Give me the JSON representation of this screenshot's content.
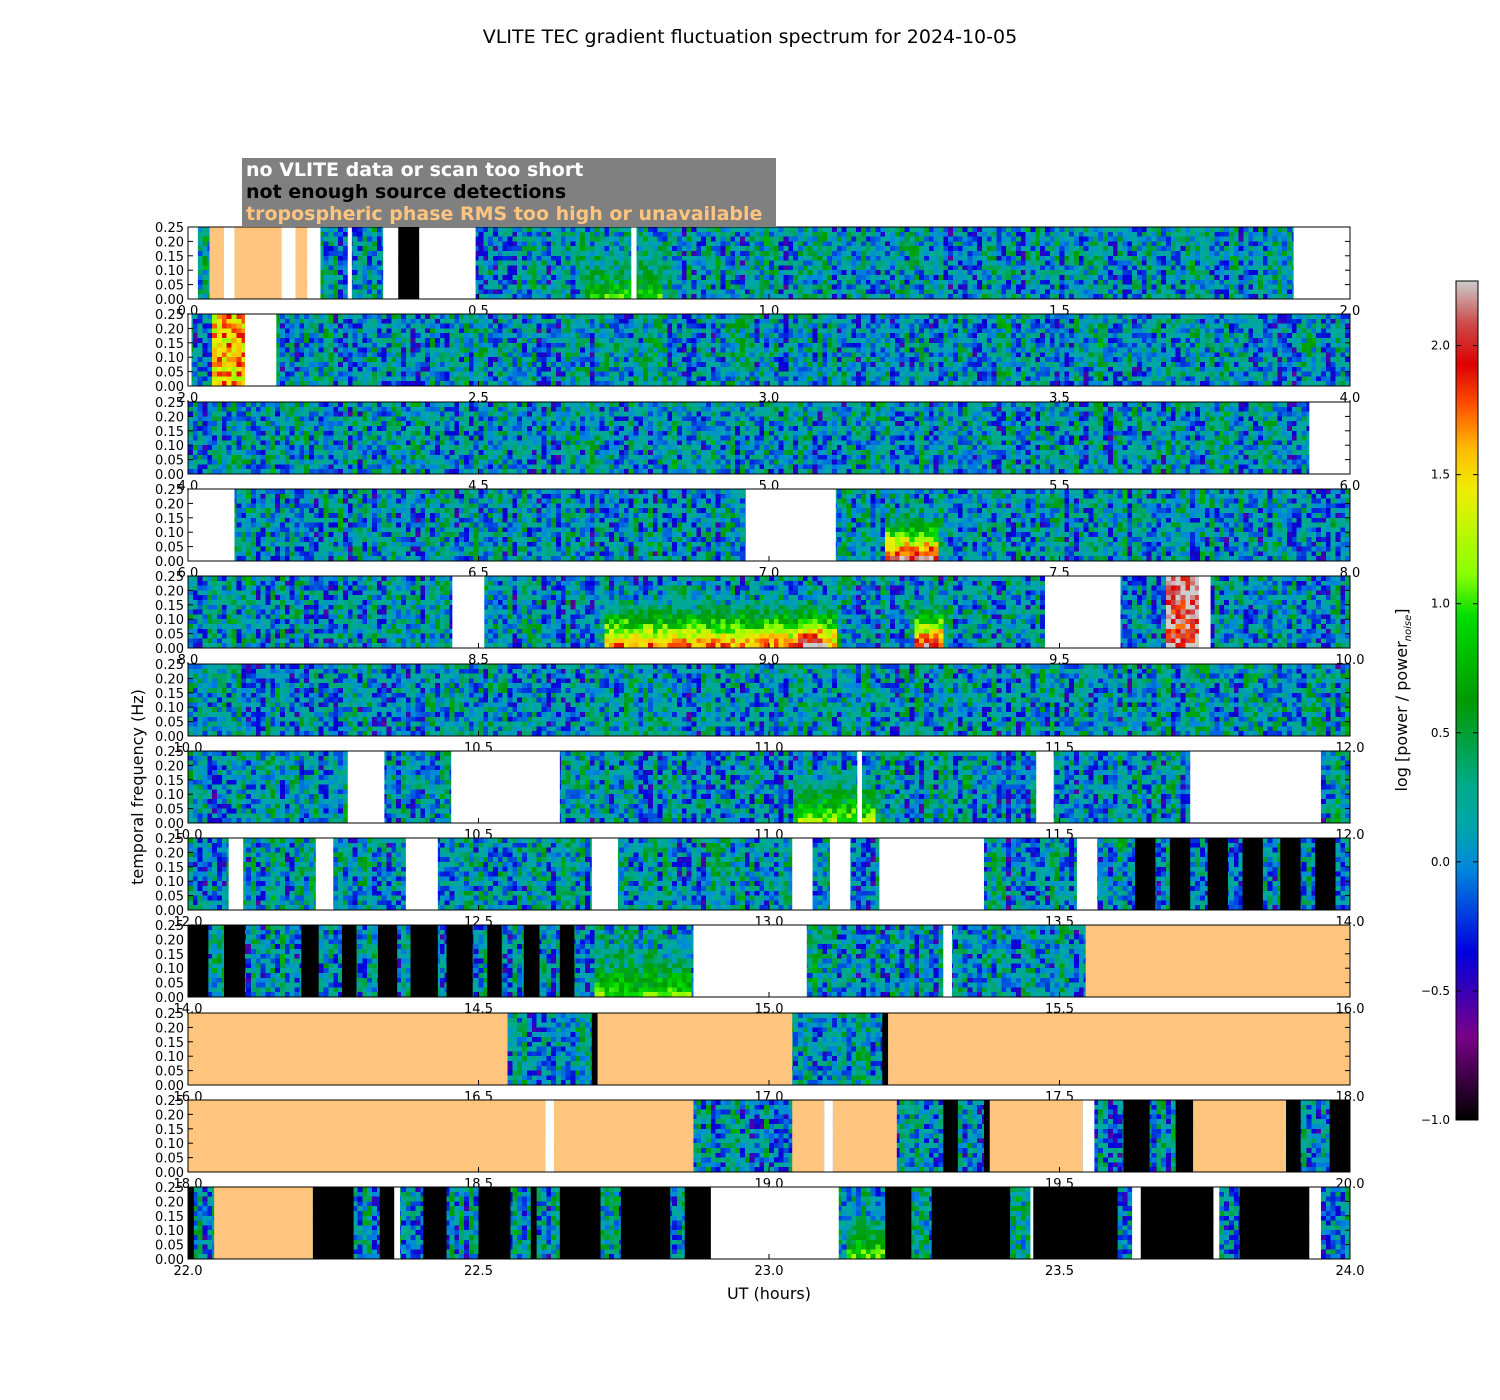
{
  "chart_data": {
    "type": "heatmap",
    "title": "VLITE TEC gradient fluctuation spectrum for 2024-10-05",
    "xlabel": "UT (hours)",
    "ylabel": "temporal frequency (Hz)",
    "colorbar_label": "log [power / power",
    "colorbar_subscript": "noise",
    "colorbar_label_end": "]",
    "colorbar_range": [
      -1.0,
      2.25
    ],
    "colorbar_ticks": [
      "−1.0",
      "−0.5",
      "0.0",
      "0.5",
      "1.0",
      "1.5",
      "2.0"
    ],
    "colorbar_tick_values": [
      -1.0,
      -0.5,
      0.0,
      0.5,
      1.0,
      1.5,
      2.0
    ],
    "colormap": "nipy_spectral",
    "ylim": [
      0.0,
      0.25
    ],
    "y_ticks": [
      "0.00",
      "0.05",
      "0.10",
      "0.15",
      "0.20",
      "0.25"
    ],
    "y_tick_values": [
      0.0,
      0.05,
      0.1,
      0.15,
      0.2,
      0.25
    ],
    "legend": [
      {
        "label": "no VLITE data or scan too short",
        "color": "#ffffff"
      },
      {
        "label": "not enough source detections",
        "color": "#000000"
      },
      {
        "label": "tropospheric phase RMS too high or unavailable",
        "color": "#ffc57e"
      }
    ],
    "legend_background": "#808080",
    "flag_colors": {
      "nodata": "#ffffff",
      "nodet": "#000000",
      "tropo": "#ffc57e"
    },
    "rows": [
      {
        "start": 0,
        "ticks": [
          "0.0",
          "0.5",
          "1.0",
          "1.5",
          "2.0"
        ],
        "flags": [
          [
            "nodata",
            0.0,
            0.017
          ],
          [
            "tropo",
            0.037,
            0.062
          ],
          [
            "nodata",
            0.062,
            0.08
          ],
          [
            "tropo",
            0.08,
            0.161
          ],
          [
            "nodata",
            0.161,
            0.185
          ],
          [
            "tropo",
            0.185,
            0.205
          ],
          [
            "nodata",
            0.205,
            0.228
          ],
          [
            "nodata",
            0.275,
            0.282
          ],
          [
            "nodata",
            0.336,
            0.362
          ],
          [
            "nodet",
            0.362,
            0.398
          ],
          [
            "nodata",
            0.398,
            0.495
          ],
          [
            "nodata",
            0.763,
            0.772
          ],
          [
            "nodata",
            1.903,
            2.0
          ]
        ],
        "hot": [
          {
            "x": 0.68,
            "w": 0.14,
            "lvl": 0.85
          }
        ]
      },
      {
        "start": 2,
        "ticks": [
          "2.0",
          "2.5",
          "3.0",
          "3.5",
          "4.0"
        ],
        "flags": [
          [
            "nodata",
            2.0,
            2.006
          ],
          [
            "nodata",
            2.098,
            2.152
          ]
        ],
        "hot": [
          {
            "x": 2.04,
            "w": 0.06,
            "lvl": 1.55,
            "full": true
          }
        ]
      },
      {
        "start": 4,
        "ticks": [
          "4.0",
          "4.5",
          "5.0",
          "5.5",
          "6.0"
        ],
        "flags": [
          [
            "nodata",
            5.93,
            6.0
          ]
        ],
        "hot": []
      },
      {
        "start": 6,
        "ticks": [
          "6.0",
          "6.5",
          "7.0",
          "7.5",
          "8.0"
        ],
        "flags": [
          [
            "nodata",
            6.0,
            6.08
          ],
          [
            "nodata",
            6.96,
            7.115
          ]
        ],
        "hot": [
          {
            "x": 7.2,
            "w": 0.09,
            "lvl": 2.1
          }
        ]
      },
      {
        "start": 8,
        "ticks": [
          "8.0",
          "8.5",
          "9.0",
          "9.5",
          "10.0"
        ],
        "flags": [
          [
            "nodata",
            8.455,
            8.51
          ],
          [
            "nodata",
            9.475,
            9.605
          ],
          [
            "nodata",
            9.74,
            9.76
          ]
        ],
        "hot": [
          {
            "x": 8.72,
            "w": 0.4,
            "lvl": 1.7
          },
          {
            "x": 9.05,
            "w": 0.05,
            "lvl": 2.1
          },
          {
            "x": 9.25,
            "w": 0.05,
            "lvl": 2.0
          },
          {
            "x": 9.68,
            "w": 0.06,
            "lvl": 2.1,
            "full": true
          }
        ]
      },
      {
        "start": 10,
        "ticks": [
          "10.0",
          "10.5",
          "11.0",
          "11.5",
          "12.0"
        ],
        "flags": [],
        "hot": []
      },
      {
        "start": 12,
        "ticks": [
          "10.0",
          "10.5",
          "11.0",
          "11.5",
          "12.0"
        ],
        "flags": [
          [
            "nodata",
            10.275,
            10.338
          ],
          [
            "nodata",
            10.453,
            10.64
          ],
          [
            "nodata",
            11.152,
            11.16
          ],
          [
            "nodata",
            11.46,
            11.49
          ],
          [
            "nodata",
            11.725,
            11.95
          ]
        ],
        "hot": [
          {
            "x": 11.04,
            "w": 0.14,
            "lvl": 1.1
          }
        ]
      },
      {
        "start": 14,
        "ticks": [
          "12.0",
          "12.5",
          "13.0",
          "13.5",
          "14.0"
        ],
        "flags": [
          [
            "nodata",
            12.07,
            12.095
          ],
          [
            "nodata",
            12.22,
            12.25
          ],
          [
            "nodata",
            12.375,
            12.43
          ],
          [
            "nodata",
            12.695,
            12.74
          ],
          [
            "nodata",
            13.04,
            13.075
          ],
          [
            "nodata",
            13.105,
            13.14
          ],
          [
            "nodata",
            13.19,
            13.37
          ],
          [
            "nodata",
            13.53,
            13.565
          ],
          [
            "nodet",
            13.63,
            13.665
          ],
          [
            "nodet",
            13.69,
            13.725
          ],
          [
            "nodet",
            13.755,
            13.79
          ],
          [
            "nodet",
            13.815,
            13.85
          ],
          [
            "nodet",
            13.88,
            13.915
          ],
          [
            "nodet",
            13.94,
            13.975
          ]
        ],
        "hot": []
      },
      {
        "start": 16,
        "ticks": [
          "14.0",
          "14.5",
          "15.0",
          "15.5",
          "16.0"
        ],
        "flags": [
          [
            "nodet",
            14.0,
            14.035
          ],
          [
            "nodet",
            14.062,
            14.098
          ],
          [
            "nodet",
            14.195,
            14.225
          ],
          [
            "nodet",
            14.265,
            14.29
          ],
          [
            "nodet",
            14.327,
            14.36
          ],
          [
            "nodet",
            14.383,
            14.43
          ],
          [
            "nodet",
            14.445,
            14.49
          ],
          [
            "nodet",
            14.515,
            14.54
          ],
          [
            "nodet",
            14.578,
            14.605
          ],
          [
            "nodet",
            14.64,
            14.665
          ],
          [
            "nodata",
            14.87,
            15.065
          ],
          [
            "nodata",
            15.3,
            15.315
          ],
          [
            "tropo",
            15.545,
            16.0
          ]
        ],
        "hot": [
          {
            "x": 14.7,
            "w": 0.17,
            "lvl": 1.0
          }
        ]
      },
      {
        "start": 18,
        "ticks": [
          "16.0",
          "16.5",
          "17.0",
          "17.5",
          "18.0"
        ],
        "flags": [
          [
            "tropo",
            16.0,
            16.55
          ],
          [
            "nodet",
            16.695,
            16.705
          ],
          [
            "tropo",
            16.705,
            17.04
          ],
          [
            "nodet",
            17.195,
            17.205
          ],
          [
            "tropo",
            17.205,
            18.0
          ]
        ],
        "hot": []
      },
      {
        "start": 20,
        "ticks": [
          "18.0",
          "18.5",
          "19.0",
          "19.5",
          "20.0"
        ],
        "flags": [
          [
            "tropo",
            18.0,
            18.615
          ],
          [
            "nodata",
            18.615,
            18.63
          ],
          [
            "tropo",
            18.63,
            18.87
          ],
          [
            "tropo",
            19.04,
            19.095
          ],
          [
            "nodata",
            19.095,
            19.11
          ],
          [
            "tropo",
            19.11,
            19.22
          ],
          [
            "nodet",
            19.3,
            19.325
          ],
          [
            "nodet",
            19.37,
            19.38
          ],
          [
            "tropo",
            19.38,
            19.54
          ],
          [
            "nodata",
            19.54,
            19.56
          ],
          [
            "nodet",
            19.61,
            19.655
          ],
          [
            "nodet",
            19.7,
            19.73
          ],
          [
            "tropo",
            19.73,
            19.89
          ],
          [
            "nodet",
            19.89,
            19.915
          ],
          [
            "nodet",
            19.965,
            20.0
          ]
        ],
        "hot": []
      },
      {
        "start": 22,
        "ticks": [
          "22.0",
          "22.5",
          "23.0",
          "23.5",
          "24.0"
        ],
        "flags": [
          [
            "nodet",
            22.0,
            22.01
          ],
          [
            "tropo",
            22.045,
            22.215
          ],
          [
            "nodet",
            22.215,
            22.285
          ],
          [
            "nodet",
            22.33,
            22.355
          ],
          [
            "nodata",
            22.355,
            22.365
          ],
          [
            "nodet",
            22.405,
            22.445
          ],
          [
            "nodet",
            22.5,
            22.555
          ],
          [
            "nodet",
            22.59,
            22.6
          ],
          [
            "nodet",
            22.64,
            22.71
          ],
          [
            "nodet",
            22.745,
            22.83
          ],
          [
            "nodet",
            22.855,
            22.9
          ],
          [
            "nodata",
            22.9,
            23.12
          ],
          [
            "nodet",
            23.2,
            23.245
          ],
          [
            "nodet",
            23.28,
            23.415
          ],
          [
            "nodata",
            23.45,
            23.455
          ],
          [
            "nodet",
            23.455,
            23.6
          ],
          [
            "nodata",
            23.625,
            23.64
          ],
          [
            "nodet",
            23.64,
            23.765
          ],
          [
            "nodata",
            23.765,
            23.775
          ],
          [
            "nodet",
            23.81,
            23.93
          ],
          [
            "nodata",
            23.93,
            23.95
          ]
        ],
        "hot": [
          {
            "x": 23.13,
            "w": 0.08,
            "lvl": 1.0
          }
        ]
      }
    ]
  }
}
